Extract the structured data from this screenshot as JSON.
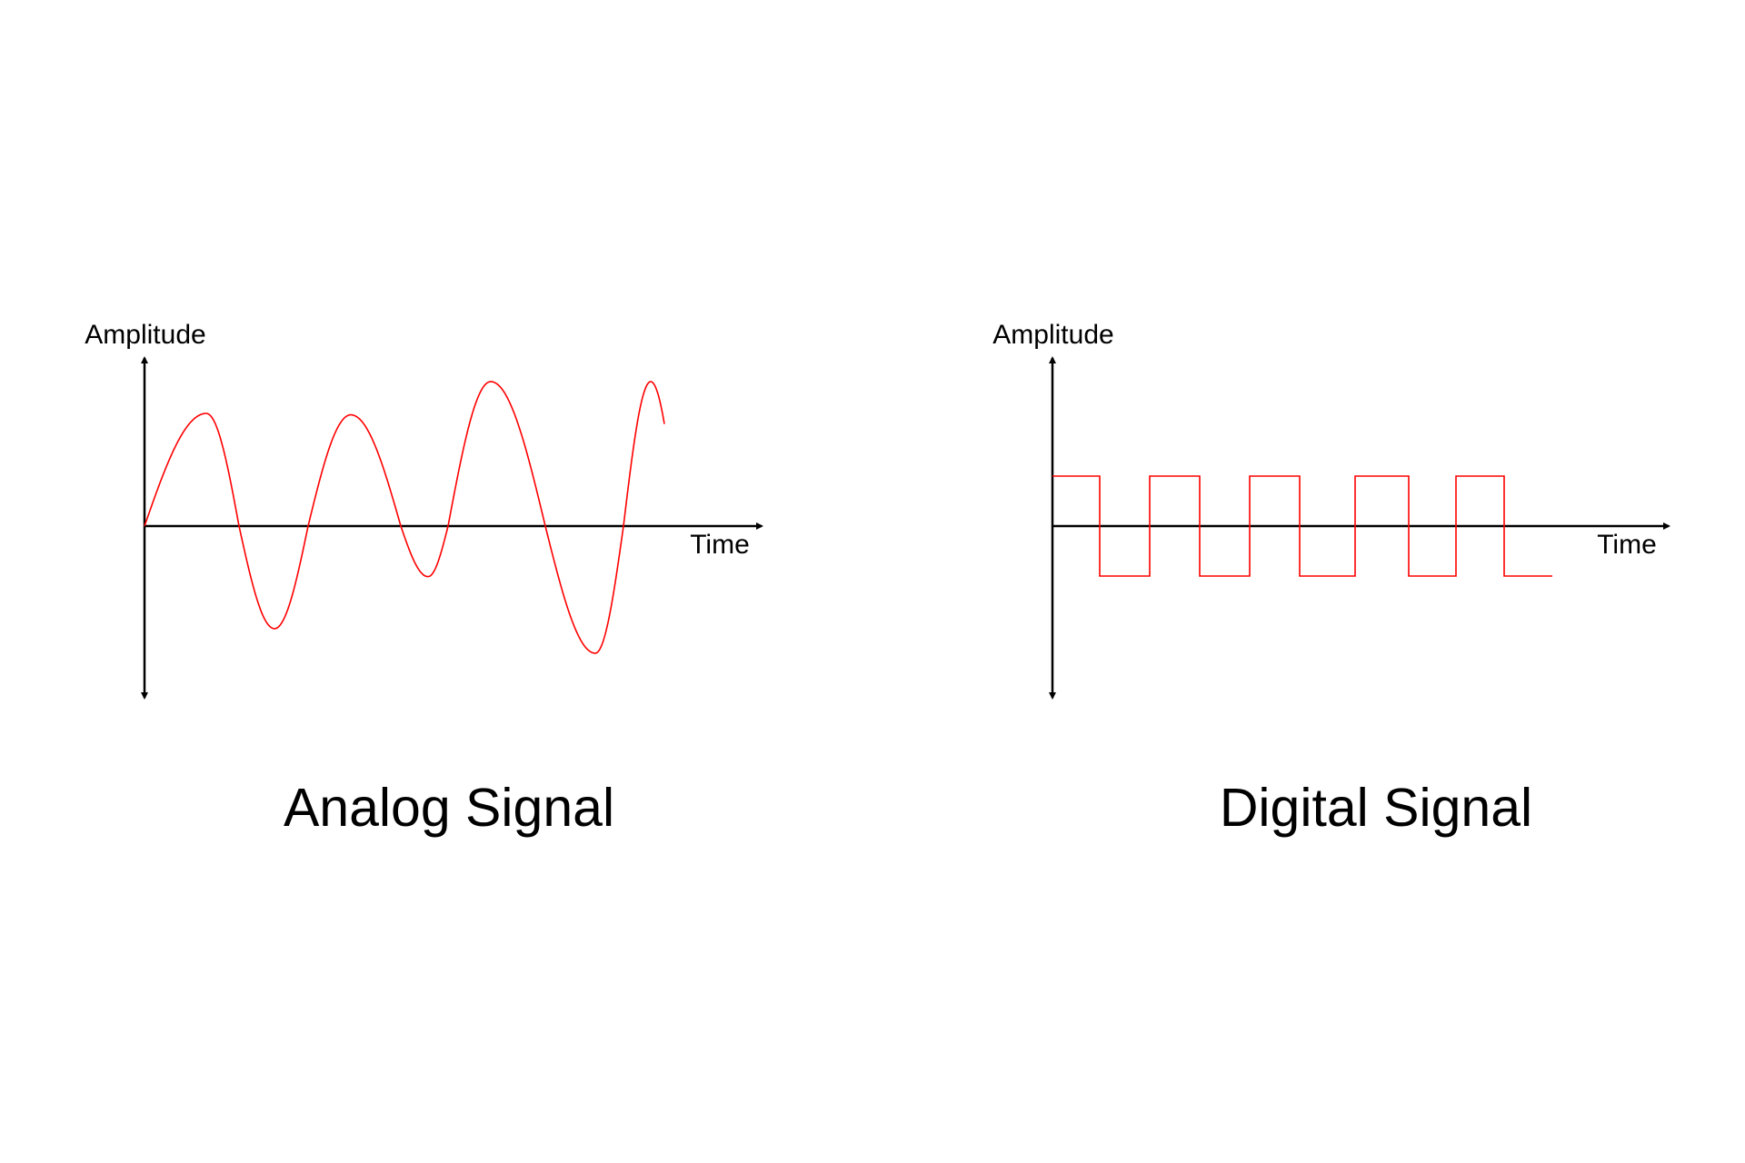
{
  "analog": {
    "title": "Analog Signal",
    "y_label": "Amplitude",
    "x_label": "Time"
  },
  "digital": {
    "title": "Digital Signal",
    "y_label": "Amplitude",
    "x_label": "Time"
  },
  "colors": {
    "signal": "#ff0000",
    "axes": "#000000"
  },
  "chart_data": [
    {
      "type": "line",
      "name_on_chart": "Analog Signal",
      "xlabel": "Time",
      "ylabel": "Amplitude",
      "description_values": {
        "lobe_extrema_relative": [
          0.78,
          -0.71,
          0.77,
          -0.35,
          1.0,
          -0.88,
          1.0
        ]
      }
    },
    {
      "type": "line",
      "name_on_chart": "Digital Signal",
      "xlabel": "Time",
      "ylabel": "Amplitude",
      "levels": [
        1,
        0,
        1,
        0,
        1,
        0,
        1,
        0,
        1,
        0
      ]
    }
  ]
}
